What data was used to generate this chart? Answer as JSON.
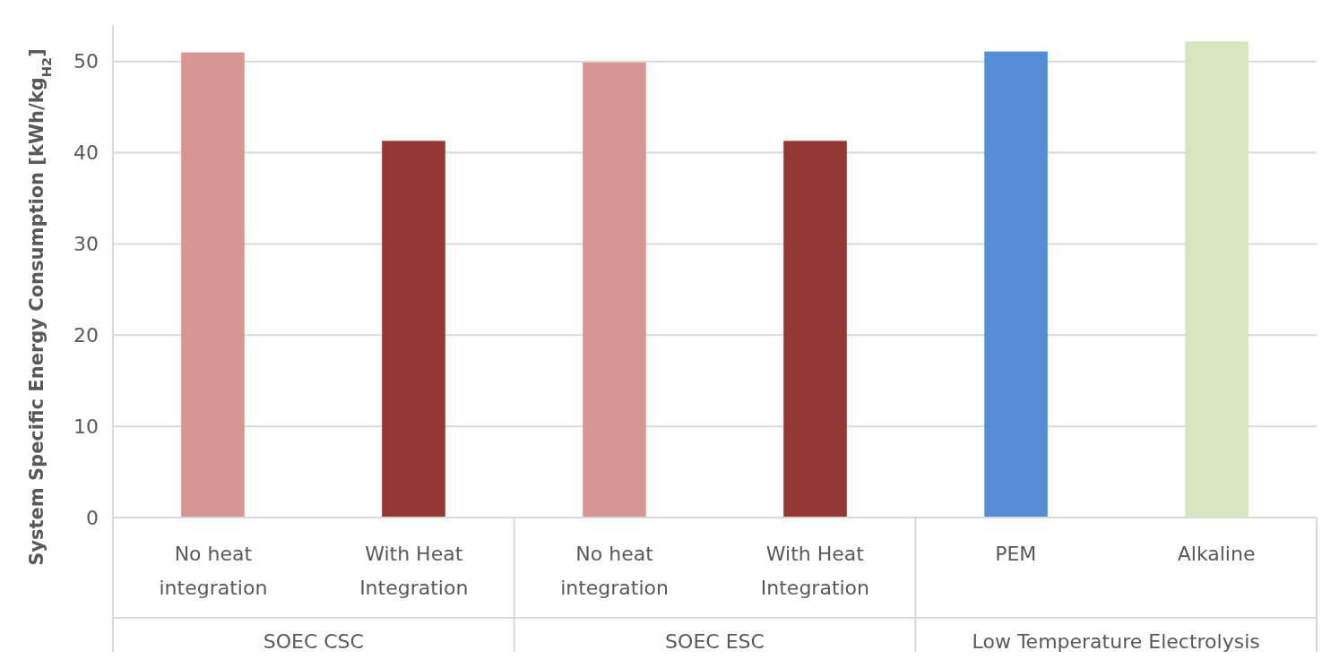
{
  "chart_data": {
    "type": "bar",
    "ylabel": "System Specific Energy Consumption [kWh/kg$_{H2}$]",
    "categories": [
      "No heat integration",
      "With Heat Integration",
      "No heat integration",
      "With Heat Integration",
      "PEM",
      "Alkaline"
    ],
    "values": [
      51.0,
      41.3,
      49.9,
      41.3,
      51.1,
      52.2
    ],
    "colors": [
      "#d99594",
      "#943634",
      "#d99594",
      "#943634",
      "#558ed5",
      "#d7e4bd"
    ],
    "annotations": [
      "SOEC CSC",
      "SOEC ESC",
      "Low Temperature Electrolysis"
    ],
    "ylim": [
      0,
      54
    ],
    "yticks": [
      0,
      10,
      20,
      30,
      40,
      50
    ],
    "grid": "y"
  }
}
